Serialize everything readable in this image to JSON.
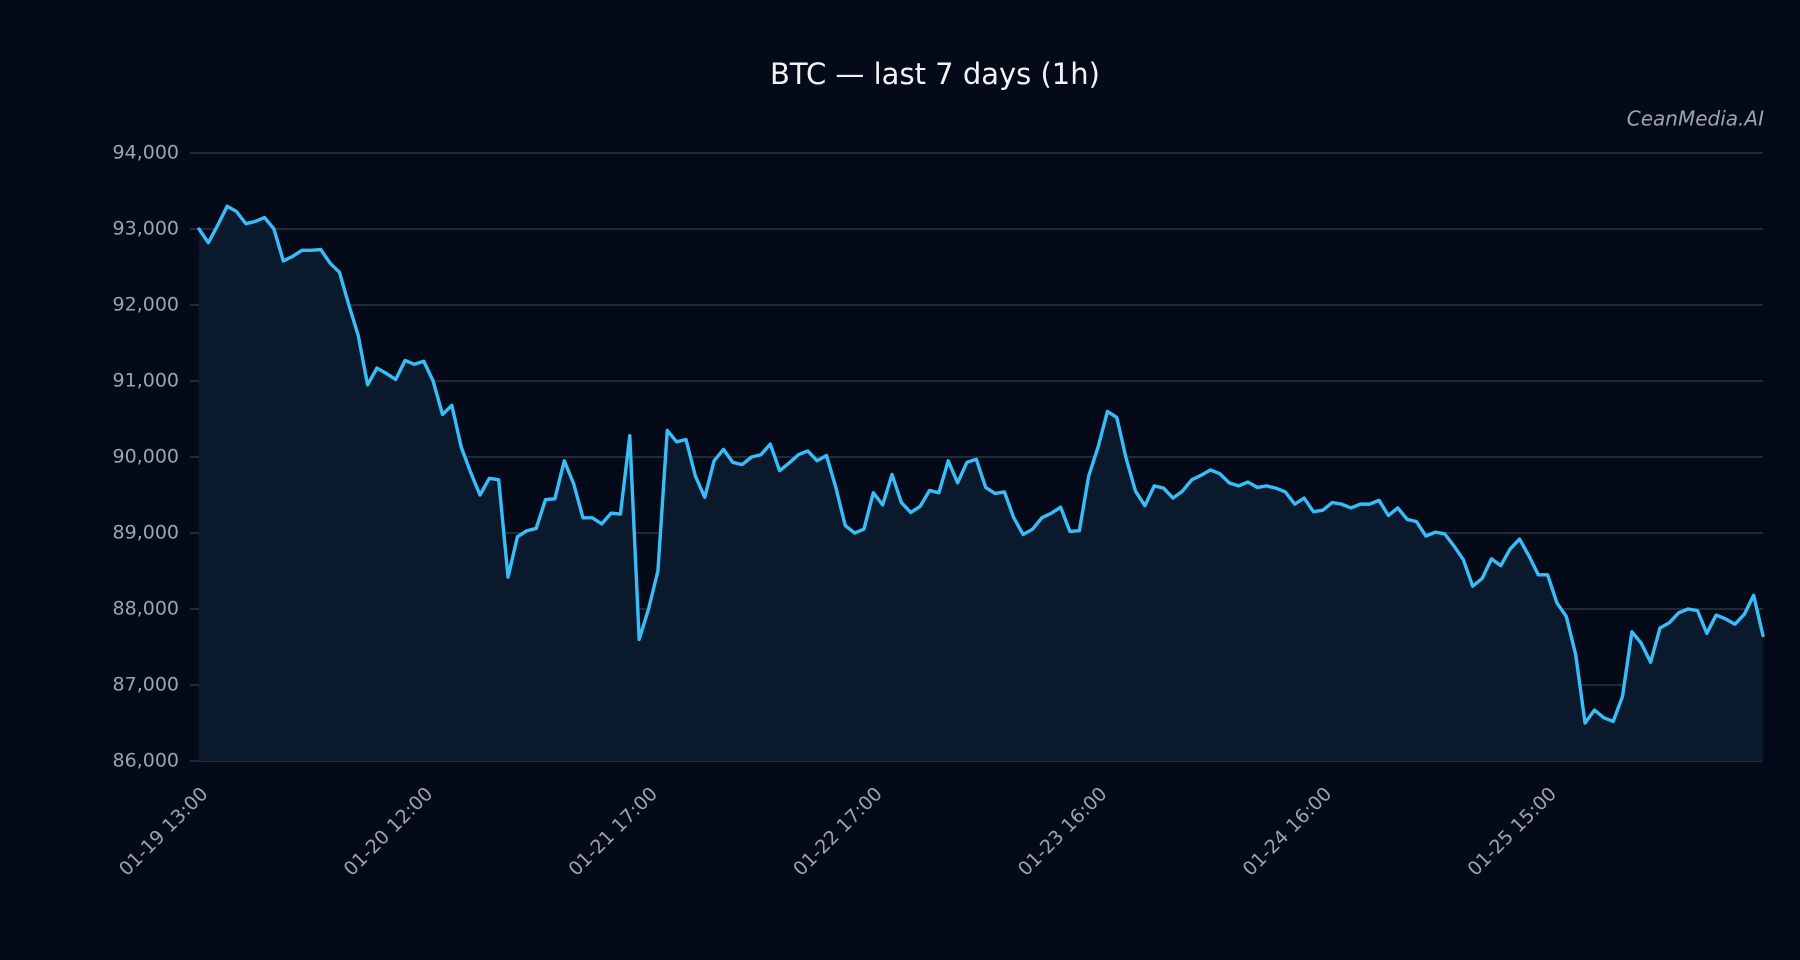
{
  "chart_data": {
    "type": "line",
    "title": "BTC — last 7 days (1h)",
    "watermark": "CeanMedia.AI",
    "categories": [
      "01-19 13:00",
      null,
      null,
      null,
      null,
      null,
      null,
      null,
      null,
      null,
      null,
      null,
      null,
      null,
      null,
      null,
      null,
      null,
      null,
      null,
      null,
      null,
      null,
      null,
      "01-20 12:00",
      null,
      null,
      null,
      null,
      null,
      null,
      null,
      null,
      null,
      null,
      null,
      null,
      null,
      null,
      null,
      null,
      null,
      null,
      null,
      null,
      null,
      null,
      null,
      "01-21 17:00",
      null,
      null,
      null,
      null,
      null,
      null,
      null,
      null,
      null,
      null,
      null,
      null,
      null,
      null,
      null,
      null,
      null,
      null,
      null,
      null,
      null,
      null,
      null,
      "01-22 17:00",
      null,
      null,
      null,
      null,
      null,
      null,
      null,
      null,
      null,
      null,
      null,
      null,
      null,
      null,
      null,
      null,
      null,
      null,
      null,
      null,
      null,
      null,
      null,
      "01-23 16:00",
      null,
      null,
      null,
      null,
      null,
      null,
      null,
      null,
      null,
      null,
      null,
      null,
      null,
      null,
      null,
      null,
      null,
      null,
      null,
      null,
      null,
      null,
      null,
      "01-24 16:00",
      null,
      null,
      null,
      null,
      null,
      null,
      null,
      null,
      null,
      null,
      null,
      null,
      null,
      null,
      null,
      null,
      null,
      null,
      null,
      null,
      null,
      null,
      null,
      "01-25 15:00",
      null,
      null,
      null,
      null,
      null,
      null,
      null,
      null,
      null,
      null,
      null,
      null,
      null,
      null,
      null,
      null,
      null,
      null,
      null,
      null,
      null,
      null,
      null
    ],
    "values": [
      93000,
      92820,
      93050,
      93300,
      93230,
      93070,
      93100,
      93150,
      93000,
      92580,
      92640,
      92720,
      92720,
      92730,
      92550,
      92430,
      92000,
      91600,
      90950,
      91170,
      91100,
      91020,
      91270,
      91220,
      91260,
      91000,
      90560,
      90680,
      90130,
      89800,
      89500,
      89720,
      89700,
      88420,
      88950,
      89030,
      89060,
      89440,
      89450,
      89950,
      89650,
      89200,
      89200,
      89120,
      89260,
      89250,
      90280,
      87600,
      88000,
      88500,
      90350,
      90200,
      90230,
      89750,
      89470,
      89950,
      90100,
      89930,
      89900,
      90000,
      90030,
      90170,
      89820,
      89920,
      90030,
      90080,
      89950,
      90020,
      89600,
      89100,
      89000,
      89050,
      89530,
      89370,
      89770,
      89400,
      89270,
      89350,
      89560,
      89530,
      89950,
      89660,
      89930,
      89970,
      89600,
      89520,
      89540,
      89200,
      88980,
      89050,
      89200,
      89260,
      89340,
      89020,
      89030,
      89750,
      90130,
      90600,
      90520,
      89980,
      89550,
      89360,
      89620,
      89590,
      89460,
      89550,
      89700,
      89760,
      89830,
      89780,
      89660,
      89620,
      89670,
      89600,
      89620,
      89590,
      89540,
      89380,
      89460,
      89280,
      89300,
      89400,
      89380,
      89330,
      89380,
      89380,
      89430,
      89230,
      89330,
      89180,
      89150,
      88960,
      89010,
      88990,
      88830,
      88650,
      88300,
      88400,
      88660,
      88570,
      88790,
      88920,
      88700,
      88450,
      88450,
      88080,
      87900,
      87400,
      86500,
      86670,
      86570,
      86520,
      86850,
      87700,
      87550,
      87300,
      87750,
      87820,
      87950,
      88000,
      87980,
      87680,
      87920,
      87870,
      87800,
      87930,
      88180,
      87650
    ],
    "color": "#38bdf8",
    "area_color": "#0a1a2c",
    "ylim": [
      86000,
      94000
    ],
    "yticks": [
      {
        "value": 86000,
        "label": "86,000"
      },
      {
        "value": 87000,
        "label": "87,000"
      },
      {
        "value": 88000,
        "label": "88,000"
      },
      {
        "value": 89000,
        "label": "89,000"
      },
      {
        "value": 90000,
        "label": "90,000"
      },
      {
        "value": 91000,
        "label": "91,000"
      },
      {
        "value": 92000,
        "label": "92,000"
      },
      {
        "value": 93000,
        "label": "93,000"
      },
      {
        "value": 94000,
        "label": "94,000"
      }
    ],
    "grid": true
  }
}
